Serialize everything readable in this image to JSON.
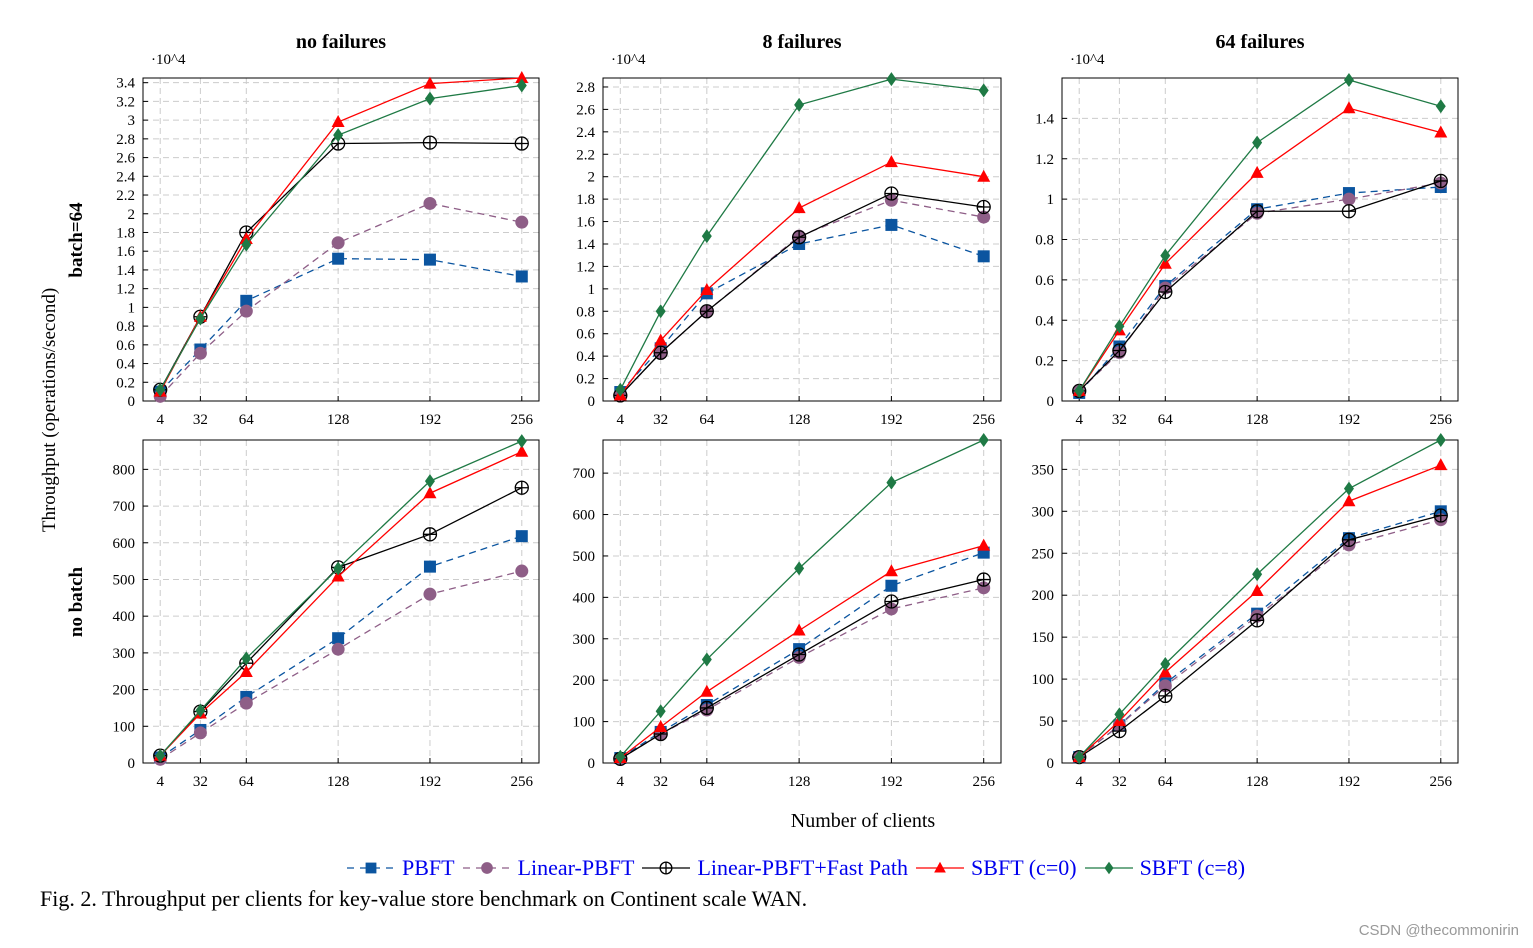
{
  "figure": {
    "caption": "Fig. 2.  Throughput per clients for key-value store benchmark on Continent scale WAN.",
    "ylabel": "Throughput (operations/second)",
    "xlabel": "Number of clients",
    "row_labels": [
      "batch=64",
      "no batch"
    ],
    "watermark": "CSDN @thecommonirin"
  },
  "legend": [
    {
      "name": "PBFT",
      "color": "#0b55a0",
      "marker": "square",
      "dash": true
    },
    {
      "name": "Linear-PBFT",
      "color": "#8e5e87",
      "marker": "circle",
      "dash": true
    },
    {
      "name": "Linear-PBFT+Fast Path",
      "color": "#000000",
      "marker": "oplus",
      "dash": false
    },
    {
      "name": "SBFT (c=0)",
      "color": "#ff0000",
      "marker": "triangle",
      "dash": false
    },
    {
      "name": "SBFT (c=8)",
      "color": "#1f7a45",
      "marker": "diamond",
      "dash": false
    }
  ],
  "chart_data": [
    {
      "type": "line",
      "title": "no failures",
      "row": "batch=64",
      "multiplier": "·10^4",
      "x": [
        4,
        32,
        64,
        128,
        192,
        256
      ],
      "xticks": [
        4,
        32,
        64,
        128,
        192,
        256
      ],
      "xlim": [
        -8,
        268
      ],
      "ylim": [
        0,
        3.45
      ],
      "yticks": [
        0,
        0.2,
        0.4,
        0.6,
        0.8,
        1,
        1.2,
        1.4,
        1.6,
        1.8,
        2,
        2.2,
        2.4,
        2.6,
        2.8,
        3,
        3.2,
        3.4
      ],
      "grid": true,
      "series": [
        {
          "name": "PBFT",
          "values": [
            0.1,
            0.55,
            1.07,
            1.52,
            1.51,
            1.33
          ]
        },
        {
          "name": "Linear-PBFT",
          "values": [
            0.05,
            0.51,
            0.96,
            1.69,
            2.11,
            1.91
          ]
        },
        {
          "name": "Linear-PBFT+Fast Path",
          "values": [
            0.12,
            0.9,
            1.8,
            2.75,
            2.76,
            2.75
          ]
        },
        {
          "name": "SBFT (c=0)",
          "values": [
            0.1,
            0.9,
            1.73,
            2.98,
            3.39,
            3.45
          ]
        },
        {
          "name": "SBFT (c=8)",
          "values": [
            0.12,
            0.88,
            1.67,
            2.84,
            3.23,
            3.37
          ]
        }
      ]
    },
    {
      "type": "line",
      "title": "8 failures",
      "row": "batch=64",
      "multiplier": "·10^4",
      "x": [
        4,
        32,
        64,
        128,
        192,
        256
      ],
      "xticks": [
        4,
        32,
        64,
        128,
        192,
        256
      ],
      "xlim": [
        -8,
        268
      ],
      "ylim": [
        0,
        2.88
      ],
      "yticks": [
        0,
        0.2,
        0.4,
        0.6,
        0.8,
        1,
        1.2,
        1.4,
        1.6,
        1.8,
        2,
        2.2,
        2.4,
        2.6,
        2.8
      ],
      "grid": true,
      "series": [
        {
          "name": "PBFT",
          "values": [
            0.08,
            0.47,
            0.96,
            1.4,
            1.57,
            1.29
          ]
        },
        {
          "name": "Linear-PBFT",
          "values": [
            0.05,
            0.43,
            0.8,
            1.47,
            1.79,
            1.64
          ]
        },
        {
          "name": "Linear-PBFT+Fast Path",
          "values": [
            0.05,
            0.43,
            0.8,
            1.46,
            1.85,
            1.73
          ]
        },
        {
          "name": "SBFT (c=0)",
          "values": [
            0.05,
            0.54,
            0.99,
            1.72,
            2.13,
            2.0
          ]
        },
        {
          "name": "SBFT (c=8)",
          "values": [
            0.1,
            0.8,
            1.47,
            2.64,
            2.87,
            2.77
          ]
        }
      ]
    },
    {
      "type": "line",
      "title": "64 failures",
      "row": "batch=64",
      "multiplier": "·10^4",
      "x": [
        4,
        32,
        64,
        128,
        192,
        256
      ],
      "xticks": [
        4,
        32,
        64,
        128,
        192,
        256
      ],
      "xlim": [
        -8,
        268
      ],
      "ylim": [
        0,
        1.6
      ],
      "yticks": [
        0,
        0.2,
        0.4,
        0.6,
        0.8,
        1,
        1.2,
        1.4
      ],
      "grid": true,
      "series": [
        {
          "name": "PBFT",
          "values": [
            0.04,
            0.27,
            0.57,
            0.95,
            1.03,
            1.06
          ]
        },
        {
          "name": "Linear-PBFT",
          "values": [
            0.05,
            0.24,
            0.56,
            0.93,
            1.0,
            1.08
          ]
        },
        {
          "name": "Linear-PBFT+Fast Path",
          "values": [
            0.05,
            0.25,
            0.54,
            0.94,
            0.94,
            1.09
          ]
        },
        {
          "name": "SBFT (c=0)",
          "values": [
            0.05,
            0.35,
            0.68,
            1.13,
            1.45,
            1.33
          ]
        },
        {
          "name": "SBFT (c=8)",
          "values": [
            0.05,
            0.37,
            0.72,
            1.28,
            1.59,
            1.46
          ]
        }
      ]
    },
    {
      "type": "line",
      "title": "",
      "row": "no batch",
      "x": [
        4,
        32,
        64,
        128,
        192,
        256
      ],
      "xticks": [
        4,
        32,
        64,
        128,
        192,
        256
      ],
      "xlim": [
        -8,
        268
      ],
      "ylim": [
        0,
        880
      ],
      "yticks": [
        0,
        100,
        200,
        300,
        400,
        500,
        600,
        700,
        800
      ],
      "grid": true,
      "series": [
        {
          "name": "PBFT",
          "values": [
            15,
            90,
            180,
            340,
            535,
            618
          ]
        },
        {
          "name": "Linear-PBFT",
          "values": [
            10,
            82,
            163,
            310,
            460,
            523
          ]
        },
        {
          "name": "Linear-PBFT+Fast Path",
          "values": [
            20,
            140,
            272,
            533,
            623,
            750
          ]
        },
        {
          "name": "SBFT (c=0)",
          "values": [
            20,
            135,
            248,
            508,
            735,
            848
          ]
        },
        {
          "name": "SBFT (c=8)",
          "values": [
            20,
            143,
            285,
            530,
            768,
            877
          ]
        }
      ]
    },
    {
      "type": "line",
      "title": "",
      "row": "no batch",
      "x": [
        4,
        32,
        64,
        128,
        192,
        256
      ],
      "xticks": [
        4,
        32,
        64,
        128,
        192,
        256
      ],
      "xlim": [
        -8,
        268
      ],
      "ylim": [
        0,
        780
      ],
      "yticks": [
        0,
        100,
        200,
        300,
        400,
        500,
        600,
        700
      ],
      "grid": true,
      "series": [
        {
          "name": "PBFT",
          "values": [
            12,
            75,
            140,
            275,
            428,
            508
          ]
        },
        {
          "name": "Linear-PBFT",
          "values": [
            10,
            70,
            128,
            255,
            372,
            423
          ]
        },
        {
          "name": "Linear-PBFT+Fast Path",
          "values": [
            10,
            70,
            133,
            262,
            390,
            443
          ]
        },
        {
          "name": "SBFT (c=0)",
          "values": [
            12,
            87,
            172,
            320,
            463,
            525
          ]
        },
        {
          "name": "SBFT (c=8)",
          "values": [
            15,
            125,
            250,
            470,
            677,
            780
          ]
        }
      ]
    },
    {
      "type": "line",
      "title": "",
      "row": "no batch",
      "x": [
        4,
        32,
        64,
        128,
        192,
        256
      ],
      "xticks": [
        4,
        32,
        64,
        128,
        192,
        256
      ],
      "xlim": [
        -8,
        268
      ],
      "ylim": [
        0,
        385
      ],
      "yticks": [
        0,
        50,
        100,
        150,
        200,
        250,
        300,
        350
      ],
      "grid": true,
      "series": [
        {
          "name": "PBFT",
          "values": [
            7,
            45,
            95,
            178,
            268,
            300
          ]
        },
        {
          "name": "Linear-PBFT",
          "values": [
            7,
            45,
            92,
            175,
            260,
            290
          ]
        },
        {
          "name": "Linear-PBFT+Fast Path",
          "values": [
            7,
            38,
            80,
            170,
            266,
            295
          ]
        },
        {
          "name": "SBFT (c=0)",
          "values": [
            7,
            50,
            108,
            205,
            312,
            355
          ]
        },
        {
          "name": "SBFT (c=8)",
          "values": [
            7,
            58,
            118,
            225,
            327,
            385
          ]
        }
      ]
    }
  ]
}
